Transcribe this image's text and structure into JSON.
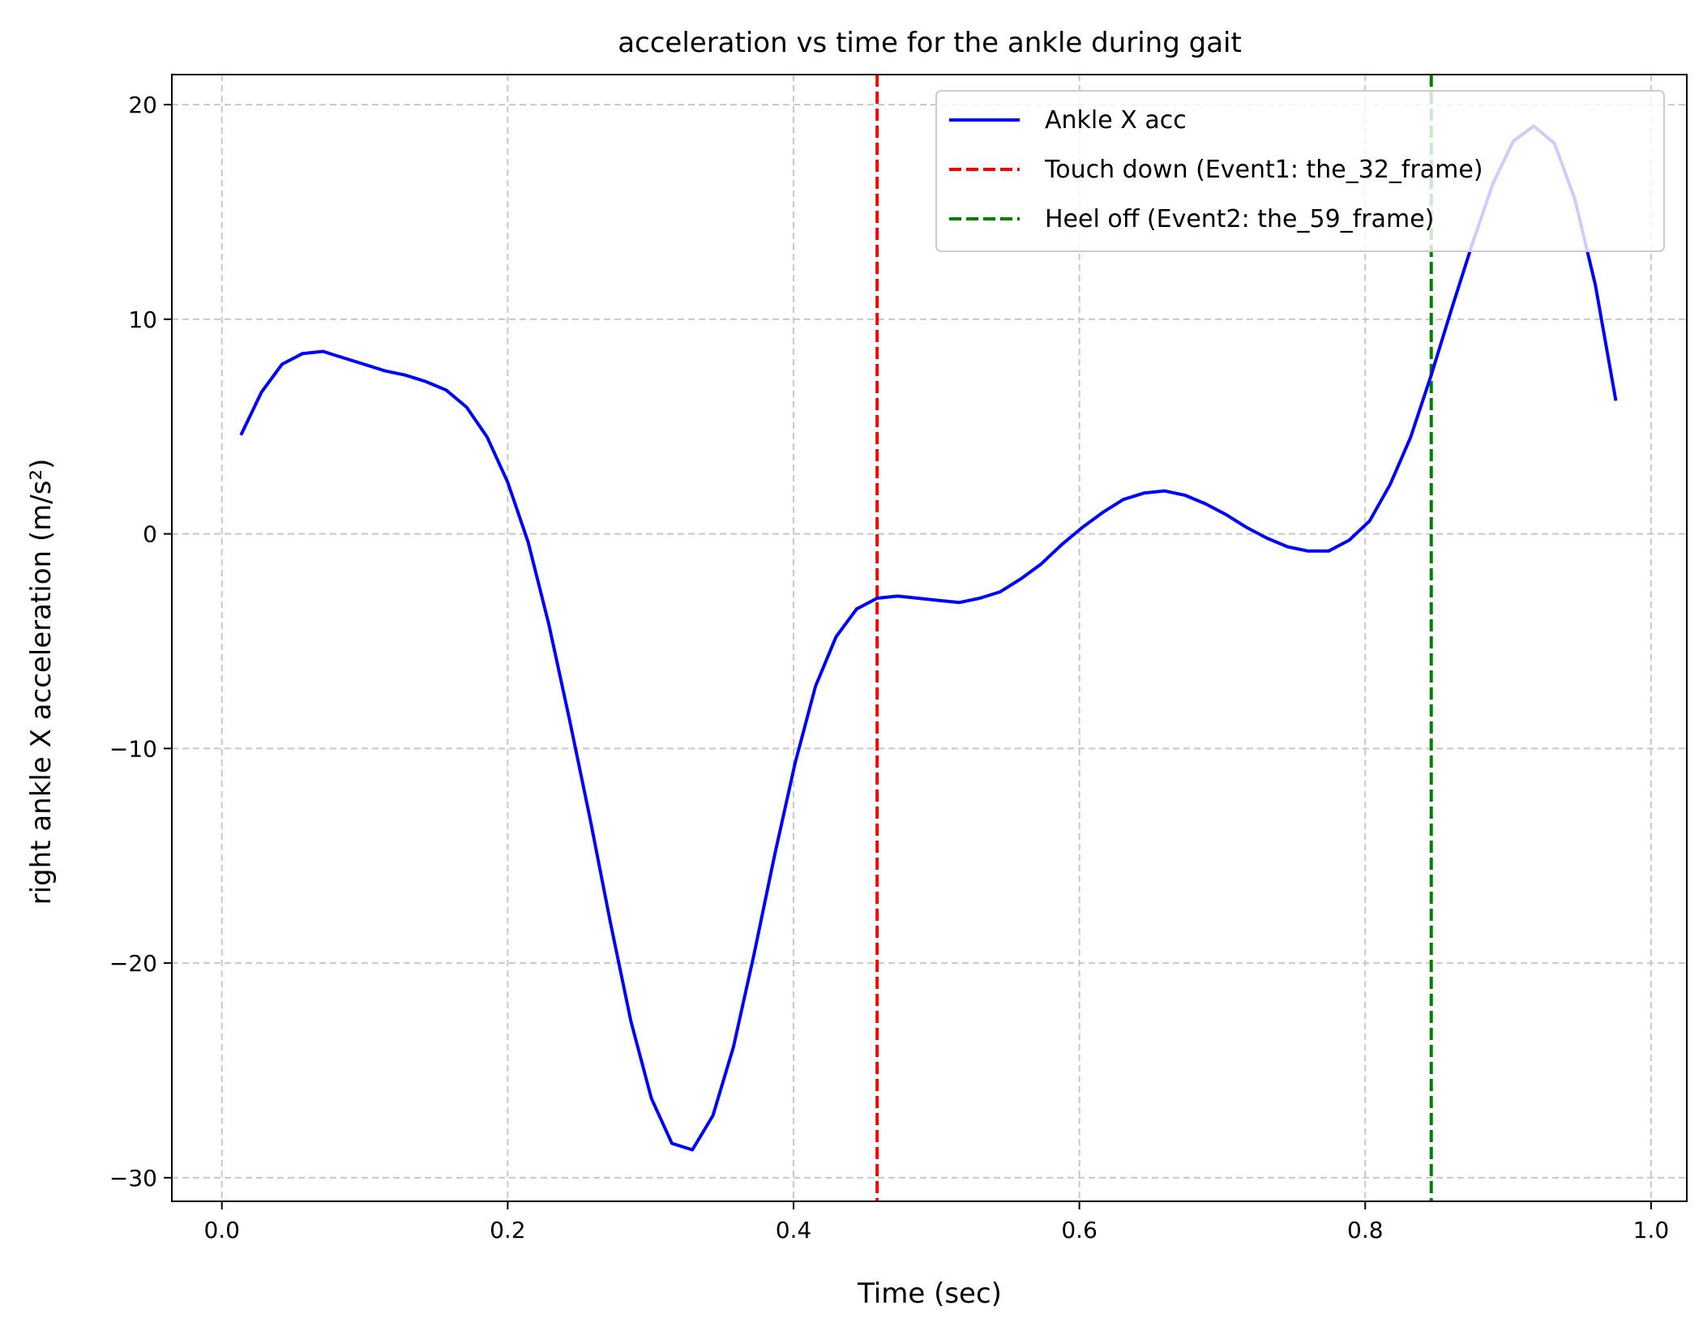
{
  "chart_data": {
    "type": "line",
    "title": "acceleration vs time for the ankle during gait",
    "xlabel": "Time (sec)",
    "ylabel": "right ankle X acceleration  (m/s²)",
    "xlim": [
      -0.035,
      1.025
    ],
    "ylim": [
      -31.1,
      21.4
    ],
    "xticks": [
      0.0,
      0.2,
      0.4,
      0.6,
      0.8,
      1.0
    ],
    "xtick_labels": [
      "0.0",
      "0.2",
      "0.4",
      "0.6",
      "0.8",
      "1.0"
    ],
    "yticks": [
      -30,
      -20,
      -10,
      0,
      10,
      20
    ],
    "ytick_labels": [
      "−30",
      "−20",
      "−10",
      "0",
      "10",
      "20"
    ],
    "grid": true,
    "legend_position": "top-right",
    "series": [
      {
        "name": "Ankle X acc",
        "color": "#0000ff",
        "style": "solid",
        "x": [
          0.0133,
          0.0277,
          0.0421,
          0.0564,
          0.0708,
          0.0851,
          0.0995,
          0.1139,
          0.1282,
          0.1426,
          0.1569,
          0.1713,
          0.1857,
          0.2,
          0.2144,
          0.2287,
          0.2431,
          0.2574,
          0.2718,
          0.2862,
          0.3005,
          0.3149,
          0.3292,
          0.3436,
          0.358,
          0.3723,
          0.3867,
          0.401,
          0.4154,
          0.4297,
          0.4441,
          0.4585,
          0.4728,
          0.4872,
          0.5015,
          0.5159,
          0.5303,
          0.5446,
          0.559,
          0.5733,
          0.5877,
          0.6021,
          0.6164,
          0.6308,
          0.6451,
          0.6595,
          0.6738,
          0.6882,
          0.7026,
          0.7169,
          0.7313,
          0.7456,
          0.76,
          0.7744,
          0.7887,
          0.8031,
          0.8174,
          0.8318,
          0.8462,
          0.8605,
          0.8749,
          0.8892,
          0.9036,
          0.9179,
          0.9323,
          0.9467,
          0.961,
          0.9754
        ],
        "y": [
          4.6,
          6.6,
          7.9,
          8.4,
          8.5,
          8.2,
          7.9,
          7.6,
          7.4,
          7.1,
          6.7,
          5.9,
          4.5,
          2.4,
          -0.4,
          -4.2,
          -8.6,
          -13.2,
          -18.1,
          -22.7,
          -26.3,
          -28.4,
          -28.7,
          -27.1,
          -23.9,
          -19.6,
          -15.0,
          -10.7,
          -7.1,
          -4.8,
          -3.5,
          -3.0,
          -2.9,
          -3.0,
          -3.1,
          -3.2,
          -3.0,
          -2.7,
          -2.1,
          -1.4,
          -0.5,
          0.3,
          1.0,
          1.6,
          1.9,
          2.0,
          1.8,
          1.4,
          0.9,
          0.3,
          -0.2,
          -0.6,
          -0.8,
          -0.8,
          -0.3,
          0.6,
          2.3,
          4.5,
          7.4,
          10.5,
          13.5,
          16.3,
          18.3,
          19.0,
          18.2,
          15.6,
          11.6,
          6.2
        ]
      },
      {
        "name": "Touch down (Event1: the_32_frame)",
        "color": "#ff0000",
        "style": "dashed",
        "x_value": 0.4585
      },
      {
        "name": "Heel off (Event2: the_59_frame)",
        "color": "#008000",
        "style": "dashed",
        "x_value": 0.8462
      }
    ]
  }
}
